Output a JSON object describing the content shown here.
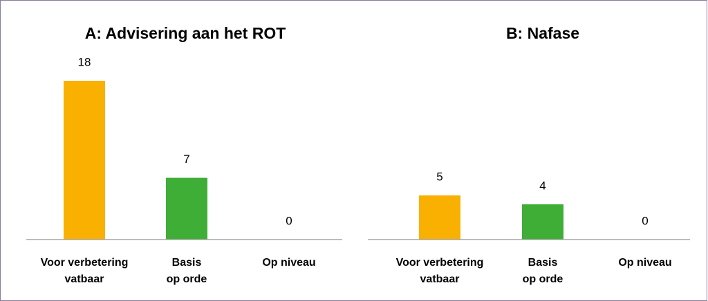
{
  "chart_data": [
    {
      "type": "bar",
      "title": "A: Advisering aan het ROT",
      "categories": [
        [
          "Voor verbetering",
          "vatbaar"
        ],
        [
          "Basis",
          "op orde"
        ],
        [
          "Op niveau"
        ]
      ],
      "values": [
        18,
        7,
        0
      ],
      "colors": [
        "#f9b000",
        "#3fae37",
        "#3fae37"
      ]
    },
    {
      "type": "bar",
      "title": "B: Nafase",
      "categories": [
        [
          "Voor verbetering",
          "vatbaar"
        ],
        [
          "Basis",
          "op orde"
        ],
        [
          "Op niveau"
        ]
      ],
      "values": [
        5,
        4,
        0
      ],
      "colors": [
        "#f9b000",
        "#3fae37",
        "#3fae37"
      ]
    }
  ]
}
